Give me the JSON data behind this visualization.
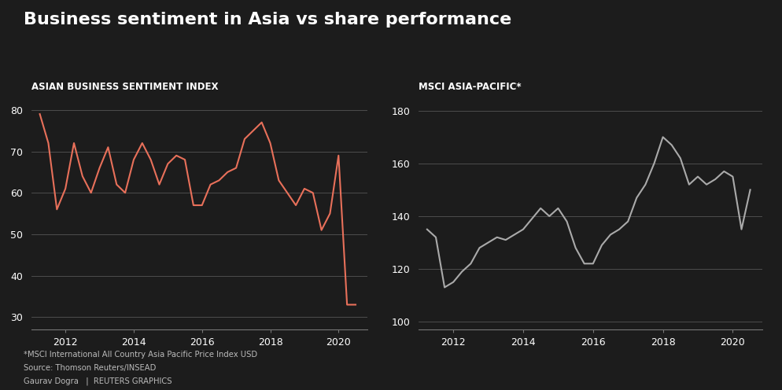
{
  "title": "Business sentiment in Asia vs share performance",
  "background_color": "#1c1c1c",
  "text_color": "#ffffff",
  "grid_color": "#555555",
  "axis_line_color": "#777777",
  "footnote_lines": [
    "*MSCI International All Country Asia Pacific Price Index USD",
    "Source: Thomson Reuters/INSEAD",
    "Gaurav Dogra   |  REUTERS GRAPHICS"
  ],
  "left_chart": {
    "title": "ASIAN BUSINESS SENTIMENT INDEX",
    "line_color": "#e8705a",
    "ylim": [
      27,
      83
    ],
    "yticks": [
      30,
      40,
      50,
      60,
      70,
      80
    ],
    "x": [
      2011.25,
      2011.5,
      2011.75,
      2012.0,
      2012.25,
      2012.5,
      2012.75,
      2013.0,
      2013.25,
      2013.5,
      2013.75,
      2014.0,
      2014.25,
      2014.5,
      2014.75,
      2015.0,
      2015.25,
      2015.5,
      2015.75,
      2016.0,
      2016.25,
      2016.5,
      2016.75,
      2017.0,
      2017.25,
      2017.5,
      2017.75,
      2018.0,
      2018.25,
      2018.5,
      2018.75,
      2019.0,
      2019.25,
      2019.5,
      2019.75,
      2020.0,
      2020.25,
      2020.5
    ],
    "y": [
      79,
      72,
      56,
      61,
      72,
      64,
      60,
      66,
      71,
      62,
      60,
      68,
      72,
      68,
      62,
      67,
      69,
      68,
      57,
      57,
      62,
      63,
      65,
      66,
      73,
      75,
      77,
      72,
      63,
      60,
      57,
      61,
      60,
      51,
      55,
      69,
      33,
      33
    ],
    "xticks": [
      2012,
      2014,
      2016,
      2018,
      2020
    ],
    "xlim": [
      2011.0,
      2020.85
    ]
  },
  "right_chart": {
    "title": "MSCI ASIA-PACIFIC*",
    "line_color": "#aaaaaa",
    "ylim": [
      97,
      185
    ],
    "yticks": [
      100,
      120,
      140,
      160,
      180
    ],
    "x": [
      2011.25,
      2011.5,
      2011.75,
      2012.0,
      2012.25,
      2012.5,
      2012.75,
      2013.0,
      2013.25,
      2013.5,
      2013.75,
      2014.0,
      2014.25,
      2014.5,
      2014.75,
      2015.0,
      2015.25,
      2015.5,
      2015.75,
      2016.0,
      2016.25,
      2016.5,
      2016.75,
      2017.0,
      2017.25,
      2017.5,
      2017.75,
      2018.0,
      2018.25,
      2018.5,
      2018.75,
      2019.0,
      2019.25,
      2019.5,
      2019.75,
      2020.0,
      2020.25,
      2020.5
    ],
    "y": [
      135,
      132,
      113,
      115,
      119,
      122,
      128,
      130,
      132,
      131,
      133,
      135,
      139,
      143,
      140,
      143,
      138,
      128,
      122,
      122,
      129,
      133,
      135,
      138,
      147,
      152,
      160,
      170,
      167,
      162,
      152,
      155,
      152,
      154,
      157,
      155,
      135,
      150
    ],
    "xticks": [
      2012,
      2014,
      2016,
      2018,
      2020
    ],
    "xlim": [
      2011.0,
      2020.85
    ]
  }
}
